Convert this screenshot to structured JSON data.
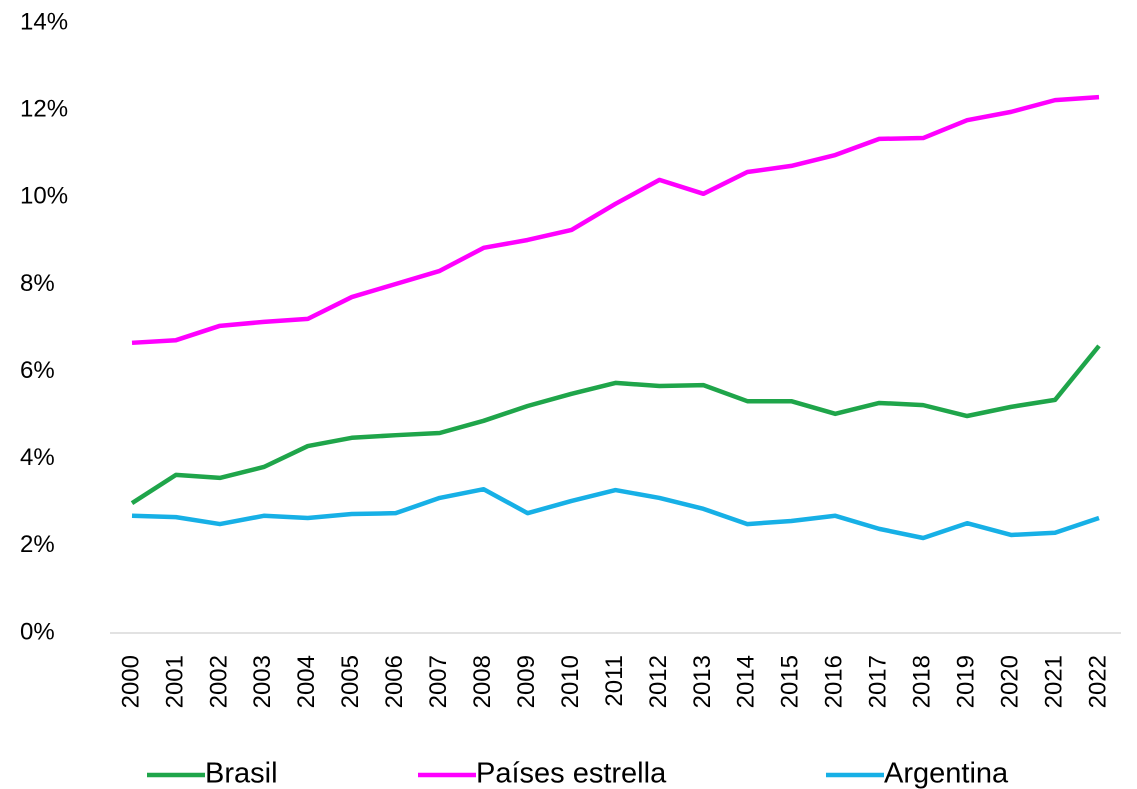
{
  "chart_data": {
    "type": "line",
    "categories": [
      "2000",
      "2001",
      "2002",
      "2003",
      "2004",
      "2005",
      "2006",
      "2007",
      "2008",
      "2009",
      "2010",
      "2011",
      "2012",
      "2013",
      "2014",
      "2015",
      "2016",
      "2017",
      "2018",
      "2019",
      "2020",
      "2021",
      "2022"
    ],
    "series": [
      {
        "name": "Brasil",
        "color": "#1fa54a",
        "values": [
          2.98,
          3.63,
          3.56,
          3.81,
          4.29,
          4.48,
          4.54,
          4.59,
          4.87,
          5.21,
          5.49,
          5.74,
          5.67,
          5.69,
          5.32,
          5.32,
          5.03,
          5.28,
          5.23,
          4.98,
          5.19,
          5.35,
          6.59
        ]
      },
      {
        "name": "Países estrella",
        "color": "#ff00ff",
        "values": [
          6.66,
          6.72,
          7.05,
          7.14,
          7.21,
          7.71,
          8.01,
          8.31,
          8.84,
          9.02,
          9.25,
          9.85,
          10.4,
          10.08,
          10.58,
          10.72,
          10.97,
          11.34,
          11.36,
          11.77,
          11.96,
          12.23,
          12.3
        ]
      },
      {
        "name": "Argentina",
        "color": "#17b0e6",
        "values": [
          2.69,
          2.66,
          2.5,
          2.69,
          2.64,
          2.73,
          2.75,
          3.1,
          3.3,
          2.75,
          3.03,
          3.28,
          3.1,
          2.85,
          2.5,
          2.57,
          2.69,
          2.39,
          2.18,
          2.52,
          2.25,
          2.3,
          2.64
        ]
      }
    ],
    "ylim": [
      0,
      14
    ],
    "yticks": [
      {
        "value": 0,
        "label": "0%"
      },
      {
        "value": 2,
        "label": "2%"
      },
      {
        "value": 4,
        "label": "4%"
      },
      {
        "value": 6,
        "label": "6%"
      },
      {
        "value": 8,
        "label": "8%"
      },
      {
        "value": 10,
        "label": "10%"
      },
      {
        "value": 12,
        "label": "12%"
      },
      {
        "value": 14,
        "label": "14%"
      }
    ],
    "grid": false,
    "legend": "bottom"
  }
}
